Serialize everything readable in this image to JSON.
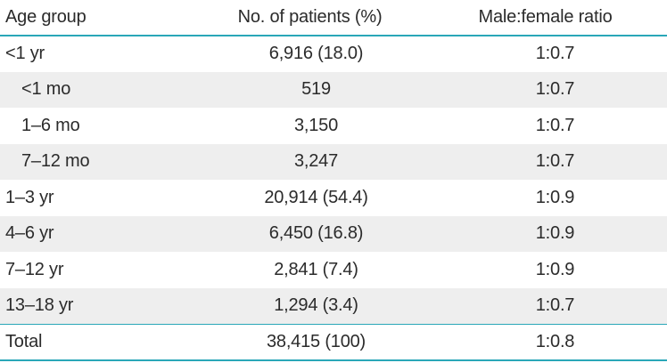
{
  "table": {
    "headers": [
      "Age group",
      "No. of patients (%)",
      "Male:female ratio"
    ],
    "rows": [
      {
        "age": "<1 yr",
        "patients": "6,916 (18.0)",
        "ratio": "1:0.7"
      },
      {
        "age": "<1 mo",
        "patients": "519",
        "ratio": "1:0.7"
      },
      {
        "age": "1–6 mo",
        "patients": "3,150",
        "ratio": "1:0.7"
      },
      {
        "age": "7–12 mo",
        "patients": "3,247",
        "ratio": "1:0.7"
      },
      {
        "age": "1–3 yr",
        "patients": "20,914 (54.4)",
        "ratio": "1:0.9"
      },
      {
        "age": "4–6 yr",
        "patients": "6,450 (16.8)",
        "ratio": "1:0.9"
      },
      {
        "age": "7–12 yr",
        "patients": "2,841 (7.4)",
        "ratio": "1:0.9"
      },
      {
        "age": "13–18 yr",
        "patients": "1,294 (3.4)",
        "ratio": "1:0.7"
      },
      {
        "age": "Total",
        "patients": "38,415 (100)",
        "ratio": "1:0.8"
      }
    ]
  },
  "colors": {
    "rule": "#2aa7b8",
    "shade": "#eeeeee",
    "text": "#2b2b2b"
  }
}
